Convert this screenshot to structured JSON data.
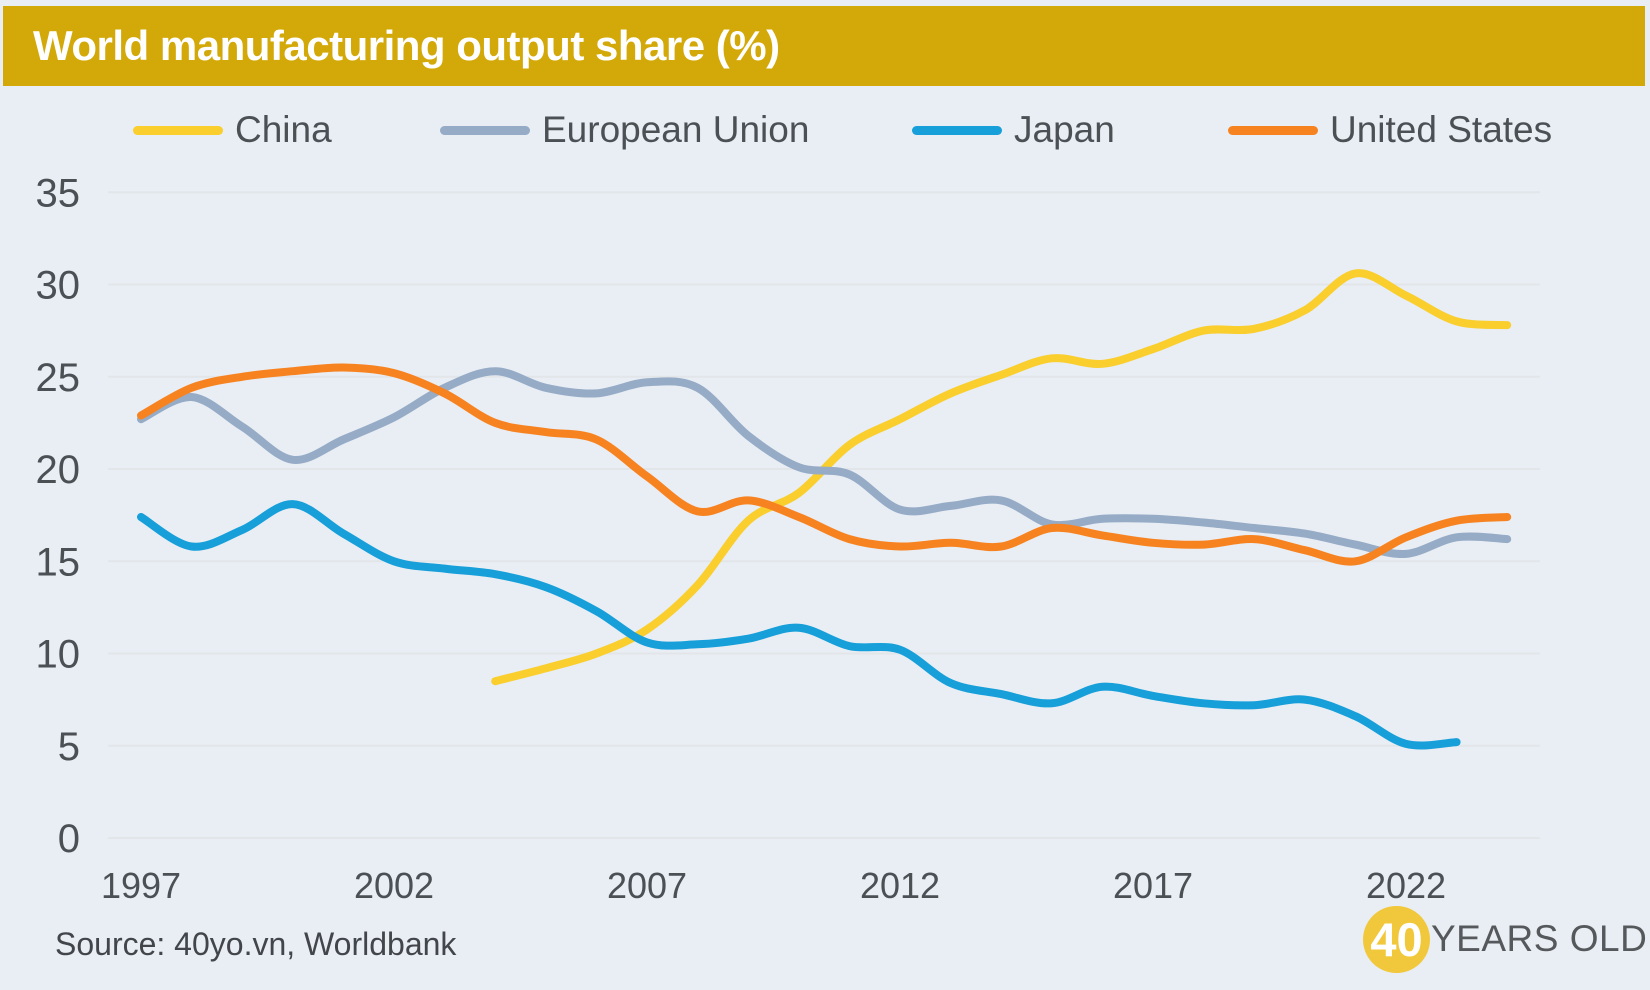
{
  "header": {
    "title": "World manufacturing output share (%)",
    "bar_color": "#d3a90a"
  },
  "source": {
    "text": "Source: 40yo.vn, Worldbank"
  },
  "logo": {
    "number": "40",
    "text": "YEARS OLD",
    "circle_color": "#f1c83b"
  },
  "colors": {
    "background": "#e9edf4",
    "gridline": "#e2e6e9",
    "axis_text": "#4b5055"
  },
  "chart_data": {
    "type": "line",
    "title": "World manufacturing output share (%)",
    "xlabel": "",
    "ylabel": "",
    "ylim": [
      0,
      35
    ],
    "xlim": [
      1996.4,
      2024.6
    ],
    "grid": true,
    "legend_position": "top",
    "x_ticks": [
      1997,
      2002,
      2007,
      2012,
      2017,
      2022
    ],
    "y_ticks": [
      0,
      5,
      10,
      15,
      20,
      25,
      30,
      35
    ],
    "series": [
      {
        "name": "China",
        "color": "#f9ce2d",
        "years": [
          2004,
          2005,
          2006,
          2007,
          2008,
          2009,
          2010,
          2011,
          2012,
          2013,
          2014,
          2015,
          2016,
          2017,
          2018,
          2019,
          2020,
          2021,
          2022,
          2023,
          2024
        ],
        "values": [
          8.5,
          9.2,
          10.0,
          11.3,
          13.7,
          17.2,
          18.7,
          21.3,
          22.7,
          24.1,
          25.1,
          26.0,
          25.7,
          26.5,
          27.5,
          27.6,
          28.6,
          30.6,
          29.4,
          28.0,
          27.8
        ]
      },
      {
        "name": "European Union",
        "color": "#95abc6",
        "years": [
          1997,
          1998,
          1999,
          2000,
          2001,
          2002,
          2003,
          2004,
          2005,
          2006,
          2007,
          2008,
          2009,
          2010,
          2011,
          2012,
          2013,
          2014,
          2015,
          2016,
          2017,
          2018,
          2019,
          2020,
          2021,
          2022,
          2023,
          2024
        ],
        "values": [
          22.7,
          23.9,
          22.3,
          20.5,
          21.6,
          22.8,
          24.4,
          25.3,
          24.4,
          24.1,
          24.7,
          24.4,
          21.8,
          20.1,
          19.7,
          17.8,
          18.0,
          18.3,
          17.0,
          17.3,
          17.3,
          17.1,
          16.8,
          16.5,
          15.9,
          15.4,
          16.3,
          16.2
        ]
      },
      {
        "name": "Japan",
        "color": "#169fd9",
        "years": [
          1997,
          1998,
          1999,
          2000,
          2001,
          2002,
          2003,
          2004,
          2005,
          2006,
          2007,
          2008,
          2009,
          2010,
          2011,
          2012,
          2013,
          2014,
          2015,
          2016,
          2017,
          2018,
          2019,
          2020,
          2021,
          2022,
          2023
        ],
        "values": [
          17.4,
          15.8,
          16.7,
          18.1,
          16.5,
          15.0,
          14.6,
          14.3,
          13.6,
          12.3,
          10.6,
          10.5,
          10.8,
          11.4,
          10.4,
          10.2,
          8.4,
          7.8,
          7.3,
          8.2,
          7.7,
          7.3,
          7.2,
          7.5,
          6.6,
          5.1,
          5.2
        ]
      },
      {
        "name": "United States",
        "color": "#f78320",
        "years": [
          1997,
          1998,
          1999,
          2000,
          2001,
          2002,
          2003,
          2004,
          2005,
          2006,
          2007,
          2008,
          2009,
          2010,
          2011,
          2012,
          2013,
          2014,
          2015,
          2016,
          2017,
          2018,
          2019,
          2020,
          2021,
          2022,
          2023,
          2024
        ],
        "values": [
          22.9,
          24.4,
          25.0,
          25.3,
          25.5,
          25.2,
          24.1,
          22.5,
          22.0,
          21.6,
          19.6,
          17.7,
          18.3,
          17.4,
          16.2,
          15.8,
          16.0,
          15.8,
          16.8,
          16.4,
          16.0,
          15.9,
          16.2,
          15.6,
          15.0,
          16.3,
          17.2,
          17.4
        ]
      }
    ]
  }
}
